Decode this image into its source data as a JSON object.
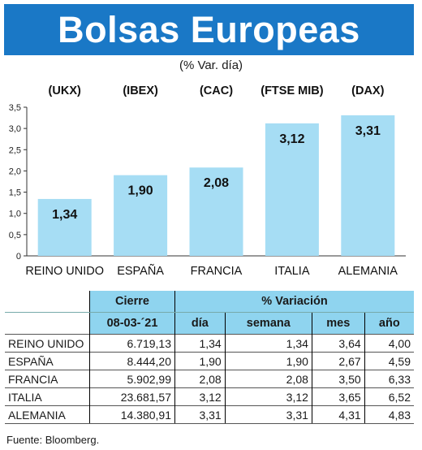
{
  "title": "Bolsas Europeas",
  "subtitle": "(% Var. día)",
  "chart_data": {
    "type": "bar",
    "categories": [
      "REINO UNIDO",
      "ESPAÑA",
      "FRANCIA",
      "ITALIA",
      "ALEMANIA"
    ],
    "tickers": [
      "(UKX)",
      "(IBEX)",
      "(CAC)",
      "(FTSE MIB)",
      "(DAX)"
    ],
    "values": [
      1.34,
      1.9,
      2.08,
      3.12,
      3.31
    ],
    "value_labels": [
      "1,34",
      "1,90",
      "2,08",
      "3,12",
      "3,31"
    ],
    "ylim": [
      0,
      3.5
    ],
    "yticks": [
      0,
      0.5,
      1.0,
      1.5,
      2.0,
      2.5,
      3.0,
      3.5
    ],
    "ytick_labels": [
      "0",
      "0,5",
      "1,0",
      "1,5",
      "2,0",
      "2,5",
      "3,0",
      "3,5"
    ],
    "bar_color": "#a6ddf4",
    "grid": false
  },
  "table": {
    "header_cierre": "Cierre",
    "header_variacion": "% Variación",
    "date": "08-03-´21",
    "col_dia": "día",
    "col_semana": "semana",
    "col_mes": "mes",
    "col_ano": "año",
    "rows": [
      {
        "name": "REINO UNIDO",
        "cierre": "6.719,13",
        "dia": "1,34",
        "semana": "1,34",
        "mes": "3,64",
        "ano": "4,00"
      },
      {
        "name": "ESPAÑA",
        "cierre": "8.444,20",
        "dia": "1,90",
        "semana": "1,90",
        "mes": "2,67",
        "ano": "4,59"
      },
      {
        "name": "FRANCIA",
        "cierre": "5.902,99",
        "dia": "2,08",
        "semana": "2,08",
        "mes": "3,50",
        "ano": "6,33"
      },
      {
        "name": "ITALIA",
        "cierre": "23.681,57",
        "dia": "3,12",
        "semana": "3,12",
        "mes": "3,65",
        "ano": "6,52"
      },
      {
        "name": "ALEMANIA",
        "cierre": "14.380,91",
        "dia": "3,31",
        "semana": "3,31",
        "mes": "4,31",
        "ano": "4,83"
      }
    ]
  },
  "source": "Fuente: Bloomberg.",
  "colors": {
    "title_bg": "#1a78c6",
    "table_header_bg": "#8fd4ef"
  }
}
